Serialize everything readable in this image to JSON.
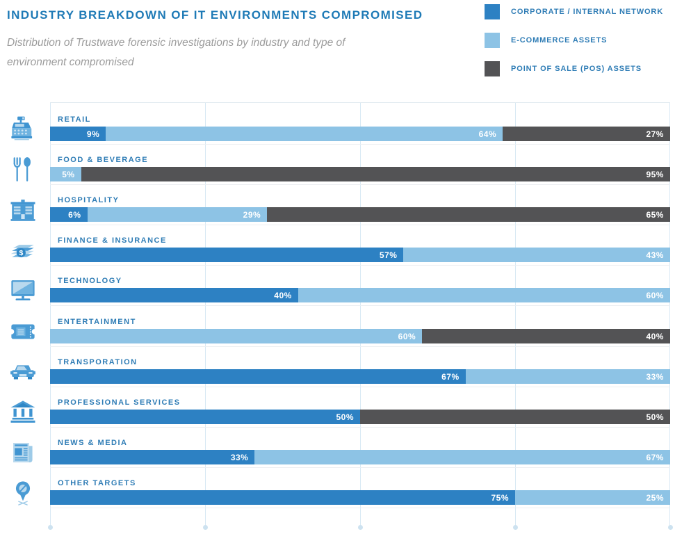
{
  "header": {
    "title": "INDUSTRY BREAKDOWN OF IT ENVIRONMENTS COMPROMISED",
    "subtitle": "Distribution of Trustwave forensic investigations by industry and type of environment compromised"
  },
  "legend": [
    {
      "label": "CORPORATE / INTERNAL NETWORK",
      "color": "#2d81c3"
    },
    {
      "label": "E-COMMERCE ASSETS",
      "color": "#8dc3e5"
    },
    {
      "label": "POINT OF SALE (POS) ASSETS",
      "color": "#535355"
    }
  ],
  "chart_data": {
    "type": "bar",
    "orientation": "horizontal",
    "stacked": true,
    "unit": "percent",
    "xlim": [
      0,
      100
    ],
    "grid": true,
    "gridlines_percent": [
      0,
      25,
      50,
      75,
      100
    ],
    "legend_position": "top-right",
    "title": "INDUSTRY BREAKDOWN OF IT ENVIRONMENTS COMPROMISED",
    "subtitle": "Distribution of Trustwave forensic investigations by industry and type of environment compromised",
    "value_label_format": "{value}%",
    "categories": [
      "RETAIL",
      "FOOD & BEVERAGE",
      "HOSPITALITY",
      "FINANCE & INSURANCE",
      "TECHNOLOGY",
      "ENTERTAINMENT",
      "TRANSPORATION",
      "PROFESSIONAL SERVICES",
      "NEWS & MEDIA",
      "OTHER TARGETS"
    ],
    "category_icons": [
      "cash-register-icon",
      "utensils-icon",
      "hotel-building-icon",
      "money-stack-icon",
      "monitor-icon",
      "ticket-icon",
      "car-icon",
      "bank-columns-icon",
      "newspaper-icon",
      "search-pin-icon"
    ],
    "series": [
      {
        "name": "CORPORATE / INTERNAL NETWORK",
        "color": "#2d81c3",
        "values": [
          9,
          0,
          6,
          57,
          40,
          0,
          67,
          50,
          33,
          75
        ]
      },
      {
        "name": "E-COMMERCE ASSETS",
        "color": "#8dc3e5",
        "values": [
          64,
          5,
          29,
          43,
          60,
          60,
          33,
          0,
          67,
          25
        ]
      },
      {
        "name": "POINT OF SALE (POS) ASSETS",
        "color": "#535355",
        "values": [
          27,
          95,
          65,
          0,
          0,
          40,
          0,
          50,
          0,
          0
        ]
      }
    ]
  },
  "colors": {
    "title": "#1e7ab6",
    "subtitle": "#9b9b9b",
    "category_label": "#2e7cb5",
    "legend_label": "#2e7cb5",
    "gridline": "#d8e9f4",
    "grid_dot": "#cde2f0",
    "row_underline": "#eceff2",
    "value_label": "#ffffff",
    "background": "#ffffff"
  }
}
